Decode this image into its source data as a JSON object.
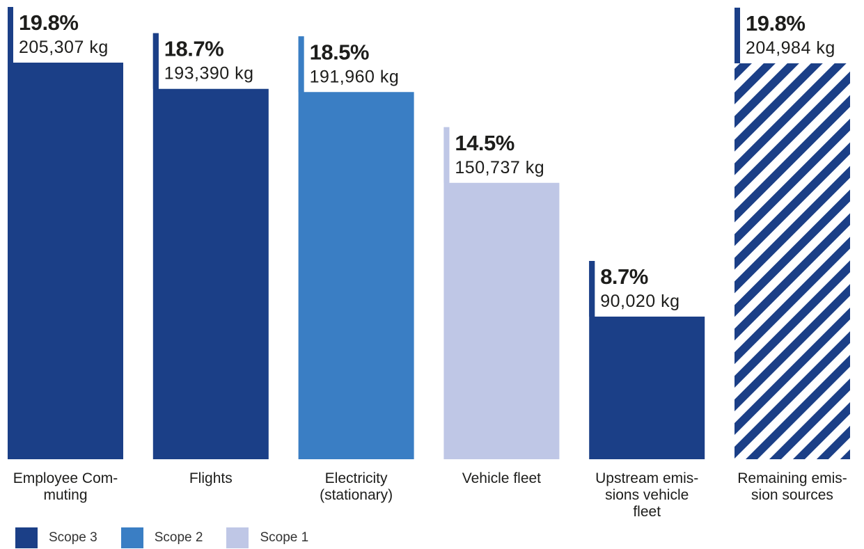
{
  "chart_data": {
    "type": "bar",
    "categories": [
      [
        "Employee Com-",
        "muting"
      ],
      [
        "Flights"
      ],
      [
        "Electricity",
        "(stationary)"
      ],
      [
        "Vehicle fleet"
      ],
      [
        "Upstream emis-",
        "sions vehicle",
        "fleet"
      ],
      [
        "Remaining emis-",
        "sion sources"
      ]
    ],
    "values": [
      205307,
      193390,
      191960,
      150737,
      90020,
      204984
    ],
    "percent_labels": [
      "19.8%",
      "18.7%",
      "18.5%",
      "14.5%",
      "8.7%",
      "19.8%"
    ],
    "value_labels": [
      "205,307 kg",
      "193,390 kg",
      "191,960 kg",
      "150,737 kg",
      "90,020 kg",
      "204,984 kg"
    ],
    "scopes": [
      "Scope 3",
      "Scope 3",
      "Scope 2",
      "Scope 1",
      "Scope 3",
      "remaining"
    ],
    "ylim": [
      0,
      205307
    ],
    "grid": false,
    "legend_position": "bottom-left",
    "legend": [
      {
        "label": "Scope 3",
        "color": "#1b3f87"
      },
      {
        "label": "Scope 2",
        "color": "#3a7ec4"
      },
      {
        "label": "Scope 1",
        "color": "#bfc7e6"
      }
    ],
    "colors": {
      "Scope 3": "#1b3f87",
      "Scope 2": "#3a7ec4",
      "Scope 1": "#bfc7e6",
      "remaining": "#1b3f87"
    },
    "remaining_fill": "hatched"
  }
}
